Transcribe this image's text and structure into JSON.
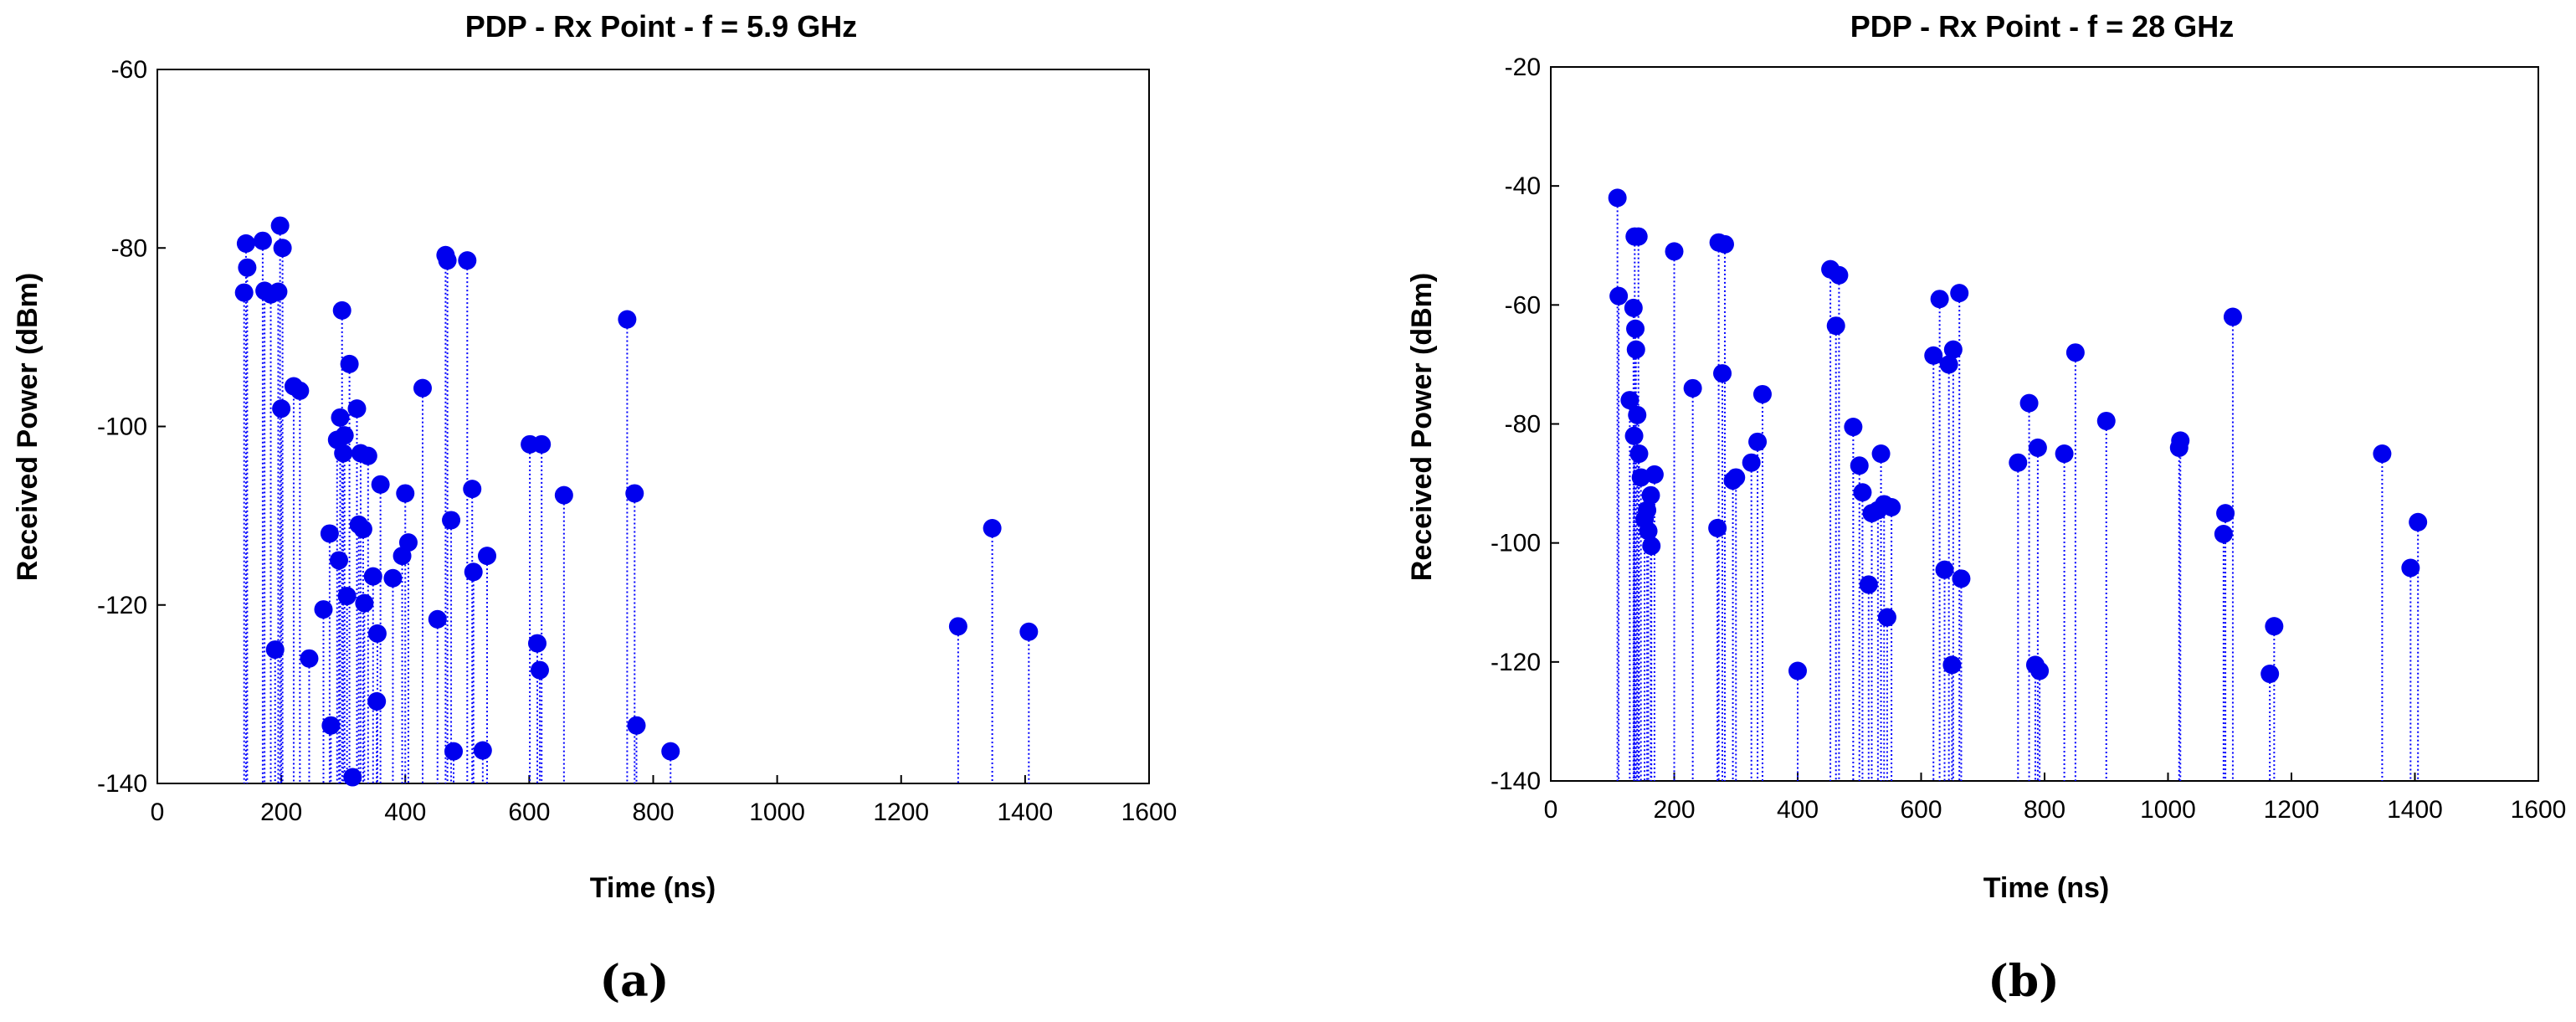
{
  "chart_data": [
    {
      "type": "scatter",
      "panel": "(a)",
      "title": "PDP - Rx Point - f = 5.9 GHz",
      "xlabel": "Time (ns)",
      "ylabel": "Received Power (dBm)",
      "xlim": [
        0,
        1600
      ],
      "ylim": [
        -140,
        -60
      ],
      "xticks": [
        0,
        200,
        400,
        600,
        800,
        1000,
        1200,
        1400,
        1600
      ],
      "yticks": [
        -140,
        -120,
        -100,
        -80,
        -60
      ],
      "stem_base": -140,
      "series": [
        {
          "name": "PDP",
          "points": [
            [
              140,
              -85
            ],
            [
              143,
              -79.5
            ],
            [
              145,
              -82.2
            ],
            [
              170,
              -79.2
            ],
            [
              173,
              -84.8
            ],
            [
              183,
              -85.2
            ],
            [
              190,
              -125
            ],
            [
              195,
              -84.9
            ],
            [
              198,
              -77.5
            ],
            [
              200,
              -98
            ],
            [
              202,
              -80
            ],
            [
              220,
              -95.5
            ],
            [
              230,
              -96
            ],
            [
              245,
              -126
            ],
            [
              268,
              -120.5
            ],
            [
              278,
              -112
            ],
            [
              280,
              -133.5
            ],
            [
              290,
              -101.5
            ],
            [
              293,
              -115
            ],
            [
              295,
              -99
            ],
            [
              298,
              -87
            ],
            [
              300,
              -103
            ],
            [
              302,
              -101
            ],
            [
              306,
              -119
            ],
            [
              310,
              -93
            ],
            [
              315,
              -139.3
            ],
            [
              322,
              -98
            ],
            [
              325,
              -111
            ],
            [
              328,
              -103
            ],
            [
              332,
              -111.5
            ],
            [
              334,
              -119.8
            ],
            [
              340,
              -103.3
            ],
            [
              348,
              -116.8
            ],
            [
              354,
              -130.8
            ],
            [
              355,
              -123.2
            ],
            [
              360,
              -106.5
            ],
            [
              380,
              -117
            ],
            [
              395,
              -114.5
            ],
            [
              400,
              -107.5
            ],
            [
              405,
              -113
            ],
            [
              428,
              -95.7
            ],
            [
              452,
              -121.6
            ],
            [
              465,
              -80.8
            ],
            [
              468,
              -81.4
            ],
            [
              474,
              -110.5
            ],
            [
              478,
              -136.4
            ],
            [
              500,
              -81.4
            ],
            [
              508,
              -107
            ],
            [
              510,
              -116.3
            ],
            [
              525,
              -136.3
            ],
            [
              532,
              -114.5
            ],
            [
              601,
              -102
            ],
            [
              613,
              -124.3
            ],
            [
              617,
              -127.3
            ],
            [
              620,
              -102
            ],
            [
              656,
              -107.7
            ],
            [
              758,
              -88
            ],
            [
              770,
              -107.5
            ],
            [
              773,
              -133.5
            ],
            [
              828,
              -136.4
            ],
            [
              1292,
              -122.4
            ],
            [
              1347,
              -111.4
            ],
            [
              1406,
              -123
            ]
          ]
        }
      ]
    },
    {
      "type": "scatter",
      "panel": "(b)",
      "title": "PDP - Rx Point - f = 28 GHz",
      "xlabel": "Time (ns)",
      "ylabel": "Received Power (dBm)",
      "xlim": [
        0,
        1600
      ],
      "ylim": [
        -140,
        -20
      ],
      "xticks": [
        0,
        200,
        400,
        600,
        800,
        1000,
        1200,
        1400,
        1600
      ],
      "yticks": [
        -140,
        -120,
        -100,
        -80,
        -60,
        -40,
        -20
      ],
      "stem_base": -140,
      "series": [
        {
          "name": "PDP",
          "points": [
            [
              108,
              -42
            ],
            [
              110,
              -58.5
            ],
            [
              128,
              -76
            ],
            [
              134,
              -60.5
            ],
            [
              135,
              -82
            ],
            [
              136,
              -48.5
            ],
            [
              137,
              -64
            ],
            [
              138,
              -67.5
            ],
            [
              140,
              -78.5
            ],
            [
              142,
              -48.5
            ],
            [
              143,
              -85
            ],
            [
              146,
              -89
            ],
            [
              152,
              -96
            ],
            [
              156,
              -94.5
            ],
            [
              158,
              -98
            ],
            [
              162,
              -92
            ],
            [
              163,
              -100.5
            ],
            [
              168,
              -88.5
            ],
            [
              200,
              -51
            ],
            [
              230,
              -74
            ],
            [
              270,
              -97.5
            ],
            [
              272,
              -49.5
            ],
            [
              278,
              -71.5
            ],
            [
              282,
              -49.8
            ],
            [
              295,
              -89.5
            ],
            [
              300,
              -89
            ],
            [
              325,
              -86.5
            ],
            [
              335,
              -83
            ],
            [
              343,
              -75
            ],
            [
              400,
              -121.5
            ],
            [
              453,
              -54
            ],
            [
              462,
              -63.5
            ],
            [
              467,
              -55
            ],
            [
              490,
              -80.5
            ],
            [
              500,
              -87
            ],
            [
              505,
              -91.5
            ],
            [
              515,
              -107
            ],
            [
              520,
              -95
            ],
            [
              530,
              -94.5
            ],
            [
              535,
              -85
            ],
            [
              540,
              -93.5
            ],
            [
              545,
              -112.5
            ],
            [
              552,
              -94
            ],
            [
              620,
              -68.5
            ],
            [
              630,
              -59
            ],
            [
              638,
              -104.5
            ],
            [
              645,
              -70
            ],
            [
              650,
              -120.5
            ],
            [
              652,
              -67.5
            ],
            [
              662,
              -58
            ],
            [
              665,
              -106
            ],
            [
              757,
              -86.5
            ],
            [
              775,
              -76.5
            ],
            [
              785,
              -120.5
            ],
            [
              789,
              -84
            ],
            [
              792,
              -121.5
            ],
            [
              832,
              -85
            ],
            [
              850,
              -68
            ],
            [
              900,
              -79.5
            ],
            [
              1018,
              -84
            ],
            [
              1020,
              -82.8
            ],
            [
              1090,
              -98.5
            ],
            [
              1093,
              -95
            ],
            [
              1105,
              -62
            ],
            [
              1165,
              -122
            ],
            [
              1172,
              -114
            ],
            [
              1347,
              -85
            ],
            [
              1393,
              -104.2
            ],
            [
              1405,
              -96.5
            ]
          ]
        }
      ]
    }
  ]
}
